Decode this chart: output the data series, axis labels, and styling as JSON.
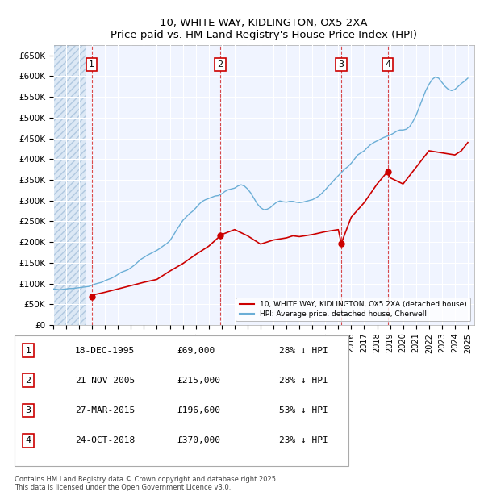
{
  "title": "10, WHITE WAY, KIDLINGTON, OX5 2XA",
  "subtitle": "Price paid vs. HM Land Registry's House Price Index (HPI)",
  "ylabel": "",
  "ylim": [
    0,
    675000
  ],
  "yticks": [
    0,
    50000,
    100000,
    150000,
    200000,
    250000,
    300000,
    350000,
    400000,
    450000,
    500000,
    550000,
    600000,
    650000
  ],
  "xlim_start": 1993.0,
  "xlim_end": 2025.5,
  "hpi_color": "#6baed6",
  "price_color": "#cc0000",
  "background_chart": "#f0f4ff",
  "hatch_color": "#c8d8f0",
  "grid_color": "#ffffff",
  "sale_dates": [
    1995.96,
    2005.89,
    2015.23,
    2018.81
  ],
  "sale_prices": [
    69000,
    215000,
    196600,
    370000
  ],
  "sale_labels": [
    "1",
    "2",
    "3",
    "4"
  ],
  "legend_price_label": "10, WHITE WAY, KIDLINGTON, OX5 2XA (detached house)",
  "legend_hpi_label": "HPI: Average price, detached house, Cherwell",
  "table_rows": [
    [
      "1",
      "18-DEC-1995",
      "£69,000",
      "28% ↓ HPI"
    ],
    [
      "2",
      "21-NOV-2005",
      "£215,000",
      "28% ↓ HPI"
    ],
    [
      "3",
      "27-MAR-2015",
      "£196,600",
      "53% ↓ HPI"
    ],
    [
      "4",
      "24-OCT-2018",
      "£370,000",
      "23% ↓ HPI"
    ]
  ],
  "footnote": "Contains HM Land Registry data © Crown copyright and database right 2025.\nThis data is licensed under the Open Government Licence v3.0.",
  "hpi_x": [
    1993.0,
    1993.25,
    1993.5,
    1993.75,
    1994.0,
    1994.25,
    1994.5,
    1994.75,
    1995.0,
    1995.25,
    1995.5,
    1995.75,
    1996.0,
    1996.25,
    1996.5,
    1996.75,
    1997.0,
    1997.25,
    1997.5,
    1997.75,
    1998.0,
    1998.25,
    1998.5,
    1998.75,
    1999.0,
    1999.25,
    1999.5,
    1999.75,
    2000.0,
    2000.25,
    2000.5,
    2000.75,
    2001.0,
    2001.25,
    2001.5,
    2001.75,
    2002.0,
    2002.25,
    2002.5,
    2002.75,
    2003.0,
    2003.25,
    2003.5,
    2003.75,
    2004.0,
    2004.25,
    2004.5,
    2004.75,
    2005.0,
    2005.25,
    2005.5,
    2005.75,
    2006.0,
    2006.25,
    2006.5,
    2006.75,
    2007.0,
    2007.25,
    2007.5,
    2007.75,
    2008.0,
    2008.25,
    2008.5,
    2008.75,
    2009.0,
    2009.25,
    2009.5,
    2009.75,
    2010.0,
    2010.25,
    2010.5,
    2010.75,
    2011.0,
    2011.25,
    2011.5,
    2011.75,
    2012.0,
    2012.25,
    2012.5,
    2012.75,
    2013.0,
    2013.25,
    2013.5,
    2013.75,
    2014.0,
    2014.25,
    2014.5,
    2014.75,
    2015.0,
    2015.25,
    2015.5,
    2015.75,
    2016.0,
    2016.25,
    2016.5,
    2016.75,
    2017.0,
    2017.25,
    2017.5,
    2017.75,
    2018.0,
    2018.25,
    2018.5,
    2018.75,
    2019.0,
    2019.25,
    2019.5,
    2019.75,
    2020.0,
    2020.25,
    2020.5,
    2020.75,
    2021.0,
    2021.25,
    2021.5,
    2021.75,
    2022.0,
    2022.25,
    2022.5,
    2022.75,
    2023.0,
    2023.25,
    2023.5,
    2023.75,
    2024.0,
    2024.25,
    2024.5,
    2024.75,
    2025.0
  ],
  "hpi_y": [
    87000,
    86000,
    85000,
    86000,
    87000,
    88000,
    88000,
    89000,
    90000,
    91000,
    92000,
    93000,
    96000,
    99000,
    101000,
    103000,
    107000,
    110000,
    113000,
    117000,
    122000,
    127000,
    130000,
    133000,
    138000,
    144000,
    151000,
    158000,
    163000,
    168000,
    172000,
    176000,
    180000,
    185000,
    191000,
    196000,
    203000,
    215000,
    228000,
    240000,
    252000,
    260000,
    268000,
    274000,
    282000,
    291000,
    298000,
    302000,
    305000,
    308000,
    311000,
    312000,
    316000,
    322000,
    326000,
    328000,
    330000,
    335000,
    338000,
    335000,
    328000,
    318000,
    305000,
    292000,
    283000,
    278000,
    279000,
    283000,
    290000,
    296000,
    299000,
    297000,
    296000,
    298000,
    298000,
    296000,
    295000,
    296000,
    298000,
    300000,
    302000,
    306000,
    311000,
    318000,
    326000,
    335000,
    343000,
    352000,
    360000,
    368000,
    376000,
    382000,
    390000,
    400000,
    410000,
    415000,
    420000,
    428000,
    435000,
    440000,
    444000,
    448000,
    452000,
    455000,
    458000,
    462000,
    467000,
    470000,
    470000,
    472000,
    478000,
    490000,
    505000,
    525000,
    545000,
    565000,
    580000,
    592000,
    598000,
    595000,
    585000,
    575000,
    568000,
    565000,
    568000,
    575000,
    582000,
    588000,
    595000
  ],
  "price_x": [
    1993.0,
    1994.0,
    1995.0,
    1995.5,
    1995.96,
    1996.0,
    1997.0,
    1998.0,
    1999.0,
    2000.0,
    2001.0,
    2002.0,
    2003.0,
    2004.0,
    2005.0,
    2005.89,
    2006.0,
    2007.0,
    2008.0,
    2009.0,
    2010.0,
    2011.0,
    2011.5,
    2012.0,
    2013.0,
    2014.0,
    2015.0,
    2015.23,
    2016.0,
    2017.0,
    2018.0,
    2018.81,
    2019.0,
    2020.0,
    2021.0,
    2022.0,
    2023.0,
    2024.0,
    2024.5,
    2025.0
  ],
  "price_y": [
    null,
    null,
    null,
    null,
    69000,
    72000,
    79000,
    87000,
    95000,
    103000,
    110000,
    130000,
    148000,
    170000,
    190000,
    215000,
    218000,
    230000,
    215000,
    195000,
    205000,
    210000,
    215000,
    213000,
    218000,
    225000,
    230000,
    196600,
    260000,
    295000,
    340000,
    370000,
    355000,
    340000,
    380000,
    420000,
    415000,
    410000,
    420000,
    440000
  ]
}
